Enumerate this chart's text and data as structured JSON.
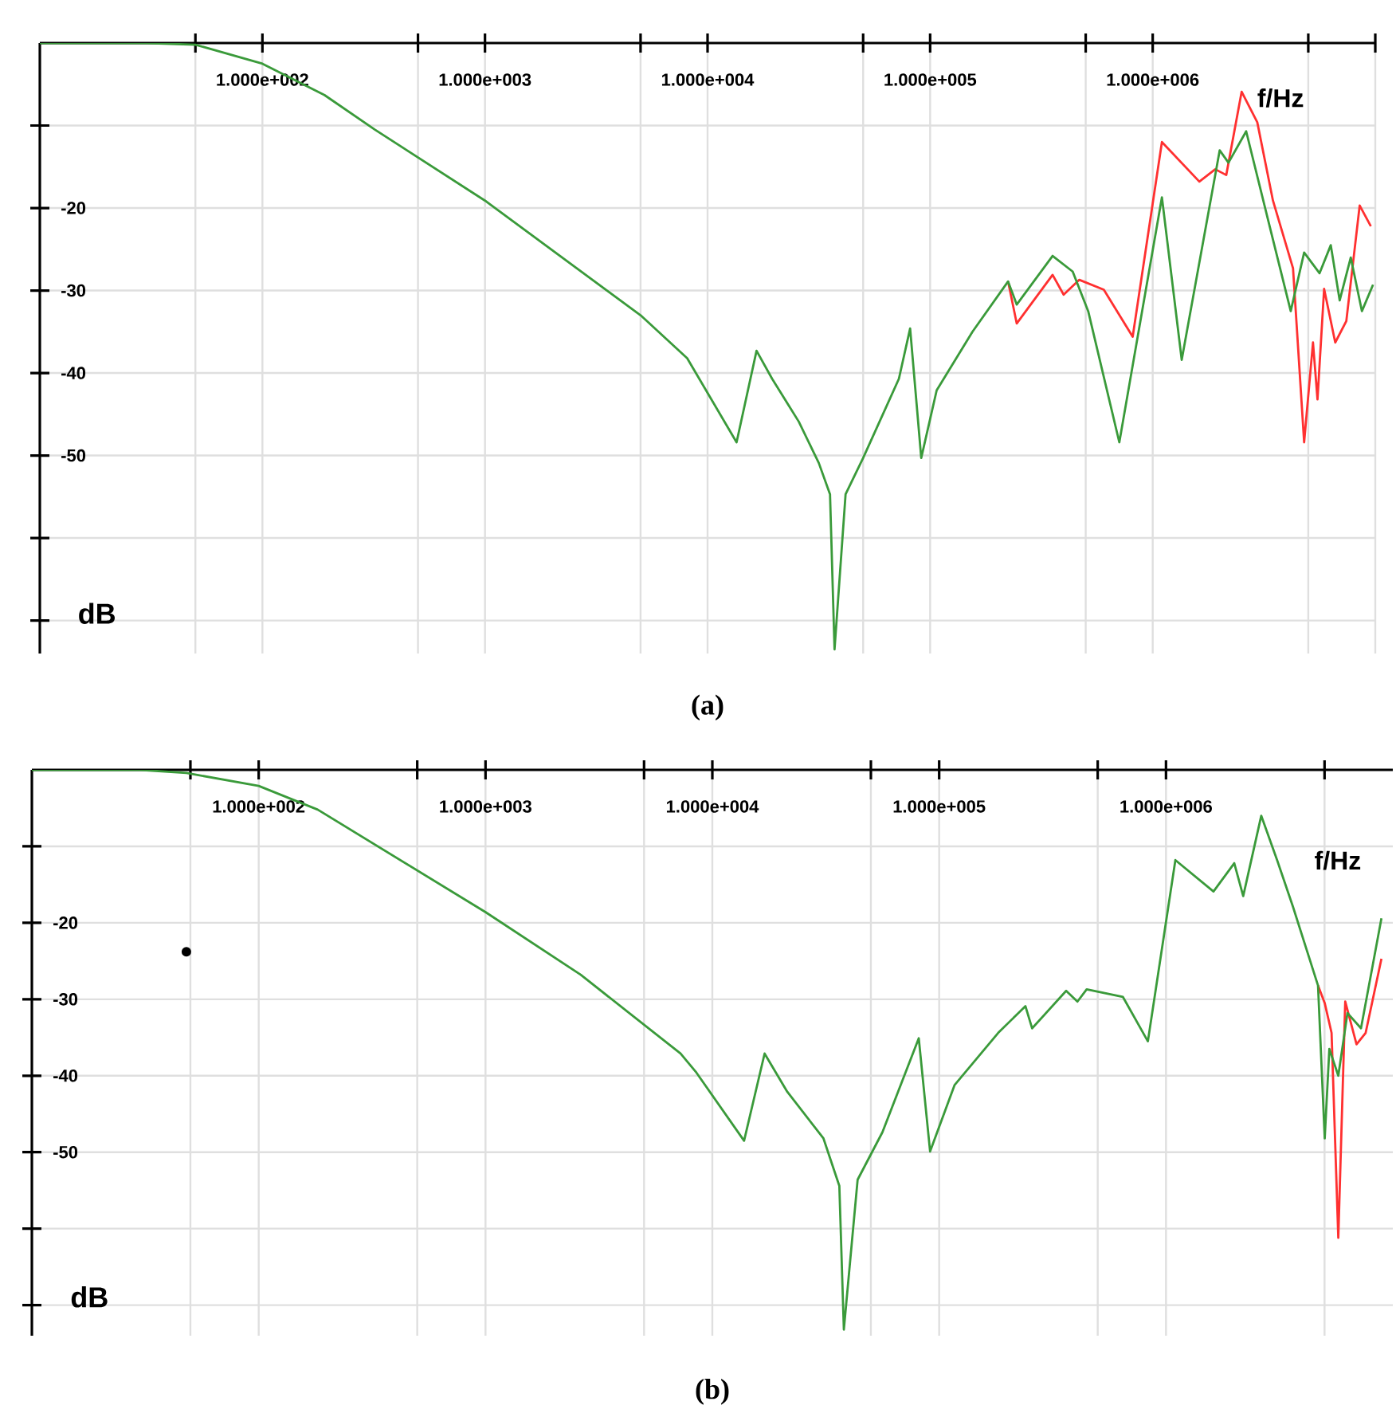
{
  "chart_data": [
    {
      "type": "line",
      "title": "(a)",
      "xlabel": "f/Hz",
      "ylabel": "dB",
      "log": "x",
      "grid": true,
      "xlim": [
        10,
        10000000
      ],
      "ylim": [
        -74,
        0
      ],
      "xticks": [
        {
          "value": 50,
          "label": null
        },
        {
          "value": 100,
          "label": "1.000e+002"
        },
        {
          "value": 500,
          "label": null
        },
        {
          "value": 1000,
          "label": "1.000e+003"
        },
        {
          "value": 5000,
          "label": null
        },
        {
          "value": 10000,
          "label": "1.000e+004"
        },
        {
          "value": 50000,
          "label": null
        },
        {
          "value": 100000,
          "label": "1.000e+005"
        },
        {
          "value": 500000,
          "label": null
        },
        {
          "value": 1000000,
          "label": "1.000e+006"
        },
        {
          "value": 5000000,
          "label": null
        },
        {
          "value": 10000000,
          "label": null
        }
      ],
      "yticks": [
        {
          "value": -10,
          "label": null
        },
        -20,
        -30,
        -40,
        -50,
        {
          "value": -60,
          "label": null
        },
        {
          "value": -70,
          "label": null
        }
      ],
      "series": [
        {
          "color": "#ff3030",
          "line_style": "solid",
          "x": [
            224000,
            245000,
            355000,
            398000,
            468000,
            603000,
            813000,
            1100000,
            1620000,
            1910000,
            2140000,
            2510000,
            2950000,
            3470000,
            4270000,
            4790000,
            5250000,
            5500000,
            5890000,
            6610000,
            7410000,
            8510000,
            9550000
          ],
          "values": [
            -28.9,
            -34.0,
            -28.1,
            -30.5,
            -28.7,
            -29.9,
            -35.6,
            -12.0,
            -16.8,
            -15.3,
            -16.0,
            -5.9,
            -9.6,
            -19.1,
            -27.3,
            -48.4,
            -36.3,
            -43.2,
            -29.8,
            -36.3,
            -33.7,
            -19.7,
            -22.2
          ]
        },
        {
          "color": "#3a9a3a",
          "line_style": "solid",
          "x": [
            10,
            30,
            50,
            100,
            190,
            320,
            1000,
            5000,
            8100,
            13500,
            16600,
            19500,
            25700,
            31600,
            35500,
            37200,
            41700,
            50000,
            72400,
            81300,
            91200,
            107000,
            155000,
            224000,
            245000,
            355000,
            437000,
            513000,
            708000,
            1100000,
            1350000,
            2000000,
            2190000,
            2630000,
            3310000,
            4170000,
            4790000,
            5620000,
            6310000,
            6920000,
            7760000,
            8710000,
            9770000
          ],
          "values": [
            0,
            0,
            -0.2,
            -2.5,
            -6.3,
            -10.5,
            -19.1,
            -33,
            -38.2,
            -48.4,
            -37.3,
            -40.7,
            -45.9,
            -50.9,
            -54.7,
            -73.5,
            -54.7,
            -50.3,
            -40.7,
            -34.6,
            -50.3,
            -42.1,
            -35.0,
            -28.9,
            -31.7,
            -25.8,
            -27.7,
            -32.5,
            -48.4,
            -18.7,
            -38.4,
            -13.0,
            -14.5,
            -10.7,
            -21.6,
            -32.5,
            -25.4,
            -27.9,
            -24.5,
            -31.2,
            -26.0,
            -32.5,
            -29.3
          ]
        }
      ]
    },
    {
      "type": "line",
      "title": "(b)",
      "xlabel": "f/Hz",
      "ylabel": "dB",
      "log": "x",
      "grid": true,
      "xlim": [
        10,
        10000000
      ],
      "ylim": [
        -74,
        0
      ],
      "xticks": [
        {
          "value": 50,
          "label": null
        },
        {
          "value": 100,
          "label": "1.000e+002"
        },
        {
          "value": 500,
          "label": null
        },
        {
          "value": 1000,
          "label": "1.000e+003"
        },
        {
          "value": 5000,
          "label": null
        },
        {
          "value": 10000,
          "label": "1.000e+004"
        },
        {
          "value": 50000,
          "label": null
        },
        {
          "value": 100000,
          "label": "1.000e+005"
        },
        {
          "value": 500000,
          "label": null
        },
        {
          "value": 1000000,
          "label": "1.000e+006"
        },
        {
          "value": 5000000,
          "label": null
        }
      ],
      "yticks": [
        {
          "value": -10,
          "label": null
        },
        -20,
        -30,
        -40,
        -50,
        {
          "value": -60,
          "label": null
        },
        {
          "value": -70,
          "label": null
        }
      ],
      "series": [
        {
          "color": "#ff3030",
          "line_style": "solid",
          "x": [
            4680000,
            5010000,
            5370000,
            5750000,
            6170000,
            6920000,
            7590000,
            8910000
          ],
          "values": [
            -28.2,
            -30.5,
            -34.4,
            -61.2,
            -30.3,
            -35.9,
            -34.4,
            -24.7
          ]
        },
        {
          "color": "#3a9a3a",
          "line_style": "solid",
          "x": [
            10,
            30,
            48,
            100,
            182,
            1000,
            2630,
            7240,
            8510,
            13800,
            17000,
            21400,
            30900,
            36300,
            38000,
            43700,
            56200,
            81300,
            91200,
            117000,
            182000,
            240000,
            257000,
            363000,
            407000,
            447000,
            646000,
            832000,
            1100000,
            1620000,
            2000000,
            2190000,
            2630000,
            3090000,
            3630000,
            4680000,
            5010000,
            5250000,
            5750000,
            6310000,
            7240000,
            8910000
          ],
          "values": [
            0,
            0,
            -0.4,
            -2.1,
            -5.2,
            -18.6,
            -26.8,
            -37.1,
            -39.6,
            -48.5,
            -37.1,
            -42.1,
            -48.2,
            -54.4,
            -73.2,
            -53.6,
            -47.4,
            -35.1,
            -49.9,
            -41.2,
            -34.4,
            -30.9,
            -33.8,
            -28.9,
            -30.3,
            -28.7,
            -29.7,
            -35.5,
            -11.8,
            -15.9,
            -12.2,
            -16.5,
            -6.0,
            -11.8,
            -17.9,
            -28.2,
            -48.2,
            -36.5,
            -40.0,
            -31.8,
            -33.8,
            -19.4
          ]
        },
        {
          "type": "scatter",
          "color": "#000000",
          "marker": "circle",
          "x": [
            48
          ],
          "values": [
            -23.8
          ]
        }
      ]
    }
  ]
}
